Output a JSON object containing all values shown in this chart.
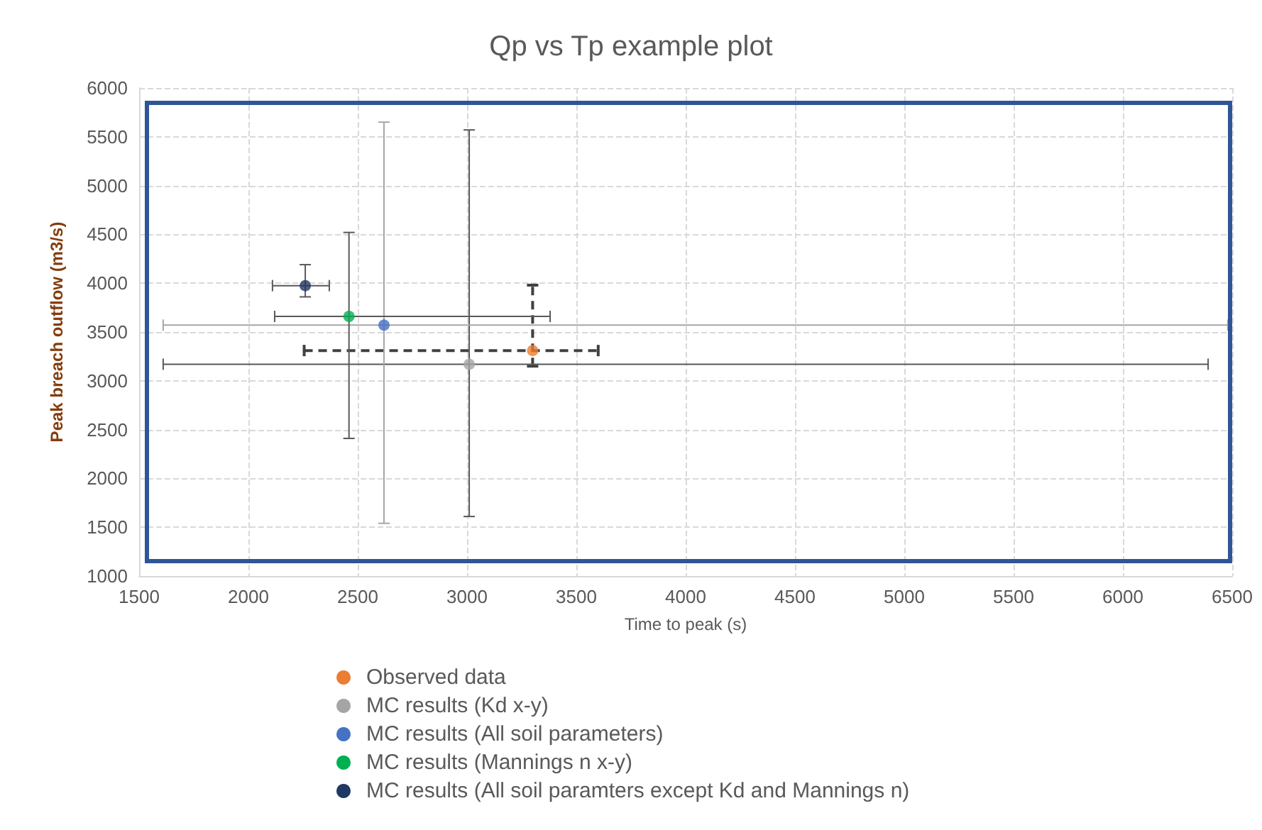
{
  "chart_data": {
    "type": "scatter",
    "title": "Qp vs Tp example plot",
    "xlabel": "Time to peak (s)",
    "ylabel": "Peak breach outflow (m3/s)",
    "xlim": [
      1500,
      6500
    ],
    "xticks": [
      1500,
      2000,
      2500,
      3000,
      3500,
      4000,
      4500,
      5000,
      5500,
      6000,
      6500
    ],
    "ylim": [
      1000,
      6000
    ],
    "yticks": [
      1000,
      1500,
      2000,
      2500,
      3000,
      3500,
      4000,
      4500,
      5000,
      5500,
      6000
    ],
    "grid": true,
    "legend": "bottom",
    "marker": "circle",
    "series": [
      {
        "name": "Observed data",
        "color": "#ed7d31",
        "x": [
          3300
        ],
        "values": [
          3310
        ],
        "errors": [
          [
            3150,
            3980
          ]
        ],
        "xerrors": [
          [
            2255,
            3600
          ]
        ],
        "line_style": "dashed"
      },
      {
        "name": "MC results (Kd x-y)",
        "color": "#a5a5a5",
        "x": [
          3010
        ],
        "values": [
          3170
        ],
        "errors": [
          [
            1610,
            5570
          ]
        ],
        "xerrors": [
          [
            1610,
            6390
          ]
        ],
        "line_style": "solid"
      },
      {
        "name": "MC results (All soil parameters)",
        "color": "#4472c4",
        "x": [
          2620
        ],
        "values": [
          3570
        ],
        "errors": [
          [
            1540,
            5650
          ]
        ],
        "xerrors": [
          [
            1610,
            6480
          ]
        ],
        "line_style": "solid"
      },
      {
        "name": "MC results (Mannings n x-y)",
        "color": "#00b050",
        "x": [
          2460
        ],
        "values": [
          3660
        ],
        "errors": [
          [
            2410,
            4520
          ]
        ],
        "xerrors": [
          [
            2120,
            3380
          ]
        ],
        "line_style": "solid"
      },
      {
        "name": "MC results (All soil paramters except Kd and Mannings n)",
        "color": "#203864",
        "x": [
          2260
        ],
        "values": [
          3975
        ],
        "errors": [
          [
            3860,
            4190
          ]
        ],
        "xerrors": [
          [
            2110,
            2370
          ]
        ],
        "line_style": "solid"
      }
    ]
  }
}
